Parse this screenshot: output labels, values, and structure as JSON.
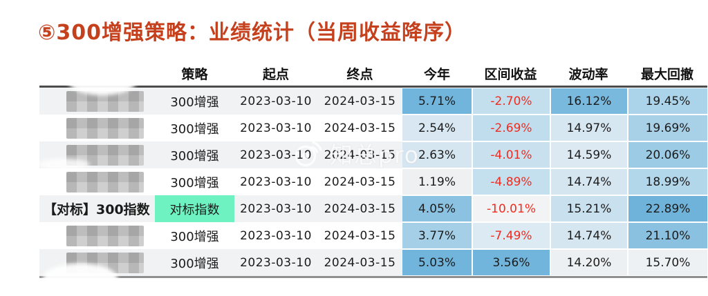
{
  "title": "⑤300增强策略：业绩统计（当周收益降序）",
  "watermark": {
    "text": "知总pro",
    "icon": "weibo-eye-icon"
  },
  "colors": {
    "title": "#c5401d",
    "negative_text": "#f22a1e",
    "benchmark_highlight": "#6ff2c1",
    "row_alt_gray": "#f1f2f3",
    "strong_blue": "#71b5dc"
  },
  "table": {
    "columns": [
      "",
      "策略",
      "起点",
      "终点",
      "今年",
      "区间收益",
      "波动率",
      "最大回撤"
    ],
    "rows": [
      {
        "name": "",
        "masked": true,
        "strategy": "300增强",
        "strategy_highlight": false,
        "start": "2023-03-10",
        "end": "2024-03-15",
        "metrics": [
          {
            "v": "5.71%",
            "bg": "#71b5dc",
            "neg": false
          },
          {
            "v": "-2.70%",
            "bg": "#c3dfee",
            "neg": true
          },
          {
            "v": "16.12%",
            "bg": "#79b9de",
            "neg": false
          },
          {
            "v": "19.45%",
            "bg": "#abd3e9",
            "neg": false
          }
        ]
      },
      {
        "name": "",
        "masked": true,
        "strategy": "300增强",
        "strategy_highlight": false,
        "start": "2023-03-10",
        "end": "2024-03-15",
        "metrics": [
          {
            "v": "2.54%",
            "bg": "#d8e7f1",
            "neg": false
          },
          {
            "v": "-2.69%",
            "bg": "#c0ddee",
            "neg": true
          },
          {
            "v": "14.97%",
            "bg": "#d7e7f2",
            "neg": false
          },
          {
            "v": "19.69%",
            "bg": "#a8d1e8",
            "neg": false
          }
        ]
      },
      {
        "name": "",
        "masked": true,
        "strategy": "300增强",
        "strategy_highlight": false,
        "start": "2023-03-10",
        "end": "2024-03-15",
        "metrics": [
          {
            "v": "2.63%",
            "bg": "#d6e6f1",
            "neg": false
          },
          {
            "v": "-4.01%",
            "bg": "#c9e1ef",
            "neg": true
          },
          {
            "v": "14.59%",
            "bg": "#dde9f2",
            "neg": false
          },
          {
            "v": "20.06%",
            "bg": "#9ccbe5",
            "neg": false
          }
        ]
      },
      {
        "name": "",
        "masked": true,
        "strategy": "300增强",
        "strategy_highlight": false,
        "start": "2023-03-10",
        "end": "2024-03-15",
        "metrics": [
          {
            "v": "1.19%",
            "bg": "#eef0f2",
            "neg": false
          },
          {
            "v": "-4.89%",
            "bg": "#c4dfee",
            "neg": true
          },
          {
            "v": "14.74%",
            "bg": "#d5e6f1",
            "neg": false
          },
          {
            "v": "18.99%",
            "bg": "#b2d6ea",
            "neg": false
          }
        ]
      },
      {
        "name": "【对标】300指数",
        "masked": false,
        "strategy": "对标指数",
        "strategy_highlight": true,
        "start": "2023-03-10",
        "end": "2024-03-15",
        "metrics": [
          {
            "v": "4.05%",
            "bg": "#8cc2e1",
            "neg": false
          },
          {
            "v": "-10.01%",
            "bg": "#f1f3f4",
            "neg": true
          },
          {
            "v": "15.21%",
            "bg": "#c9e1ef",
            "neg": false
          },
          {
            "v": "22.89%",
            "bg": "#6fb3da",
            "neg": false
          }
        ]
      },
      {
        "name": "",
        "masked": true,
        "strategy": "300增强",
        "strategy_highlight": false,
        "start": "2023-03-10",
        "end": "2024-03-15",
        "metrics": [
          {
            "v": "3.77%",
            "bg": "#a5cfe7",
            "neg": false
          },
          {
            "v": "-7.49%",
            "bg": "#dcebf3",
            "neg": true
          },
          {
            "v": "14.74%",
            "bg": "#d5e6f1",
            "neg": false
          },
          {
            "v": "21.10%",
            "bg": "#8ac1e0",
            "neg": false
          }
        ]
      },
      {
        "name": "",
        "masked": true,
        "strategy": "300增强",
        "strategy_highlight": false,
        "start": "2023-03-10",
        "end": "2024-03-15",
        "metrics": [
          {
            "v": "5.03%",
            "bg": "#71b5dc",
            "neg": false
          },
          {
            "v": "3.56%",
            "bg": "#71b5dc",
            "neg": false
          },
          {
            "v": "14.20%",
            "bg": "#edf0f2",
            "neg": false
          },
          {
            "v": "15.70%",
            "bg": "#eef1f3",
            "neg": false
          }
        ]
      }
    ]
  }
}
